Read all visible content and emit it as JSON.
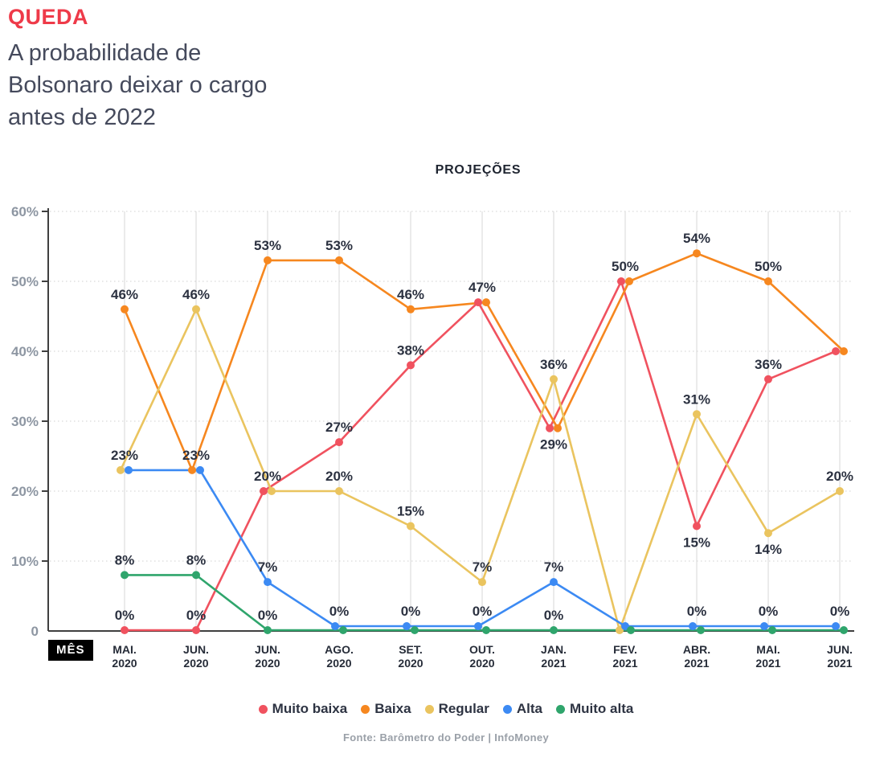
{
  "header": {
    "kicker": "QUEDA",
    "subtitle": "A probabilidade de Bolsonaro deixar o cargo antes de 2022"
  },
  "colors": {
    "kicker_red": "#ee3a49",
    "badge_bg": "#000000",
    "badge_text": "#ffffff",
    "data_label": "#2b3140",
    "axis_label": "#8d96a2",
    "month_label": "#262c38",
    "axis_line": "#3f3f3f",
    "grid_vertical": "#d7d7d7",
    "grid_horizontal": "#d9d9d9",
    "source_text": "#9aa0a8"
  },
  "chart_data": {
    "type": "line",
    "title": "PROJEÇÕES",
    "xlabel": "MÊS",
    "ylabel": "",
    "ylim": [
      0,
      60
    ],
    "grid": {
      "horizontal": "dotted",
      "vertical": "solid"
    },
    "legend_position": "bottom",
    "y_axis_ticks": [
      "0",
      "10%",
      "20%",
      "30%",
      "40%",
      "50%",
      "60%"
    ],
    "categories": [
      "MAI. 2020",
      "JUN. 2020",
      "JUN. 2020",
      "AGO. 2020",
      "SET. 2020",
      "OUT. 2020",
      "JAN. 2021",
      "FEV. 2021",
      "ABR. 2021",
      "MAI. 2021",
      "JUN. 2021"
    ],
    "series": [
      {
        "key": "muito_baixa",
        "name": "Muito baixa",
        "color": "#f0525f",
        "values": [
          0,
          0,
          20,
          27,
          38,
          47,
          29,
          50,
          15,
          36,
          40
        ]
      },
      {
        "key": "baixa",
        "name": "Baixa",
        "color": "#f6871f",
        "values": [
          46,
          23,
          53,
          53,
          46,
          47,
          29,
          50,
          54,
          50,
          40
        ]
      },
      {
        "key": "regular",
        "name": "Regular",
        "color": "#eac45f",
        "values": [
          23,
          46,
          20,
          20,
          15,
          7,
          36,
          0,
          31,
          14,
          20
        ]
      },
      {
        "key": "alta",
        "name": "Alta",
        "color": "#3c8af3",
        "values": [
          23,
          23,
          7,
          0,
          0,
          0,
          7,
          0,
          0,
          0,
          0
        ]
      },
      {
        "key": "muito_alta",
        "name": "Muito alta",
        "color": "#2fa56c",
        "values": [
          8,
          8,
          0,
          0,
          0,
          0,
          0,
          0,
          0,
          0,
          0
        ]
      }
    ],
    "point_labels": [
      {
        "col": 0,
        "series": "baixa",
        "text": "46%",
        "pos": "above"
      },
      {
        "col": 0,
        "series": "alta",
        "text": "23%",
        "pos": "above"
      },
      {
        "col": 0,
        "series": "muito_alta",
        "text": "8%",
        "pos": "above"
      },
      {
        "col": 0,
        "series": "muito_baixa",
        "text": "0%",
        "pos": "above"
      },
      {
        "col": 1,
        "series": "regular",
        "text": "46%",
        "pos": "above"
      },
      {
        "col": 1,
        "series": "baixa",
        "text": "23%",
        "pos": "above"
      },
      {
        "col": 1,
        "series": "muito_alta",
        "text": "8%",
        "pos": "above"
      },
      {
        "col": 1,
        "series": "muito_baixa",
        "text": "0%",
        "pos": "above"
      },
      {
        "col": 2,
        "series": "baixa",
        "text": "53%",
        "pos": "above"
      },
      {
        "col": 2,
        "series": "muito_baixa",
        "text": "20%",
        "pos": "above"
      },
      {
        "col": 2,
        "series": "alta",
        "text": "7%",
        "pos": "above"
      },
      {
        "col": 2,
        "series": "muito_alta",
        "text": "0%",
        "pos": "above"
      },
      {
        "col": 3,
        "series": "baixa",
        "text": "53%",
        "pos": "above"
      },
      {
        "col": 3,
        "series": "muito_baixa",
        "text": "27%",
        "pos": "above"
      },
      {
        "col": 3,
        "series": "regular",
        "text": "20%",
        "pos": "above"
      },
      {
        "col": 3,
        "series": "alta",
        "text": "0%",
        "pos": "above"
      },
      {
        "col": 4,
        "series": "baixa",
        "text": "46%",
        "pos": "above"
      },
      {
        "col": 4,
        "series": "muito_baixa",
        "text": "38%",
        "pos": "above"
      },
      {
        "col": 4,
        "series": "regular",
        "text": "15%",
        "pos": "above"
      },
      {
        "col": 4,
        "series": "alta",
        "text": "0%",
        "pos": "above"
      },
      {
        "col": 5,
        "series": "muito_baixa",
        "text": "47%",
        "pos": "above"
      },
      {
        "col": 5,
        "series": "regular",
        "text": "7%",
        "pos": "above"
      },
      {
        "col": 5,
        "series": "alta",
        "text": "0%",
        "pos": "above"
      },
      {
        "col": 6,
        "series": "regular",
        "text": "36%",
        "pos": "above"
      },
      {
        "col": 6,
        "series": "muito_baixa",
        "text": "29%",
        "pos": "below"
      },
      {
        "col": 6,
        "series": "alta",
        "text": "7%",
        "pos": "above"
      },
      {
        "col": 6,
        "series": "muito_alta",
        "text": "0%",
        "pos": "above"
      },
      {
        "col": 7,
        "series": "muito_baixa",
        "text": "50%",
        "pos": "above"
      },
      {
        "col": 8,
        "series": "baixa",
        "text": "54%",
        "pos": "above"
      },
      {
        "col": 8,
        "series": "regular",
        "text": "31%",
        "pos": "above"
      },
      {
        "col": 8,
        "series": "muito_baixa",
        "text": "15%",
        "pos": "below"
      },
      {
        "col": 8,
        "series": "alta",
        "text": "0%",
        "pos": "above"
      },
      {
        "col": 9,
        "series": "baixa",
        "text": "50%",
        "pos": "above"
      },
      {
        "col": 9,
        "series": "muito_baixa",
        "text": "36%",
        "pos": "above"
      },
      {
        "col": 9,
        "series": "regular",
        "text": "14%",
        "pos": "below"
      },
      {
        "col": 9,
        "series": "alta",
        "text": "0%",
        "pos": "above"
      },
      {
        "col": 10,
        "series": "regular",
        "text": "20%",
        "pos": "above"
      },
      {
        "col": 10,
        "series": "alta",
        "text": "0%",
        "pos": "above"
      }
    ]
  },
  "footer": {
    "source": "Fonte: Barômetro do Poder | InfoMoney"
  }
}
